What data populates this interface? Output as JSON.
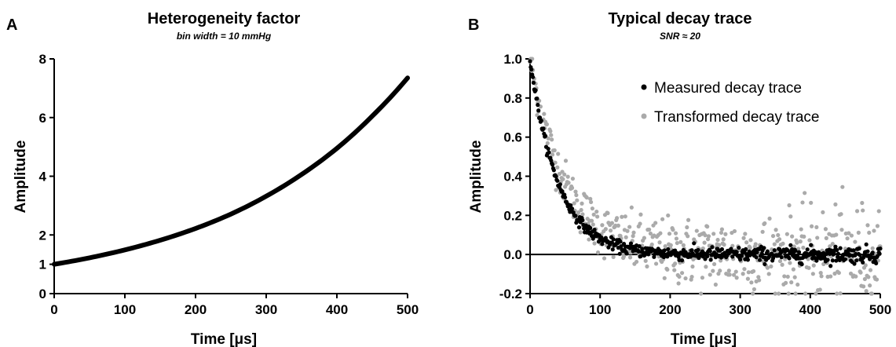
{
  "chart_data": [
    {
      "panel": "A",
      "type": "line",
      "title": "Heterogeneity factor",
      "subtitle": "bin width = 10 mmHg",
      "xlabel": "Time [μs]",
      "ylabel": "Amplitude",
      "xlim": [
        0,
        500
      ],
      "ylim": [
        0,
        8
      ],
      "xticks": [
        "0",
        "100",
        "200",
        "300",
        "400",
        "500"
      ],
      "yticks": [
        "0",
        "1",
        "2",
        "4",
        "6",
        "8"
      ],
      "series": [
        {
          "x": [
            0,
            50,
            100,
            150,
            200,
            250,
            300,
            350,
            400,
            450,
            500
          ],
          "y": [
            1.0,
            1.22,
            1.49,
            1.82,
            2.22,
            2.71,
            3.32,
            4.06,
            4.95,
            6.05,
            7.35
          ]
        }
      ],
      "colors": {
        "line": "#000000"
      }
    },
    {
      "panel": "B",
      "type": "scatter",
      "title": "Typical decay trace",
      "subtitle": "SNR ≈ 20",
      "xlabel": "Time [μs]",
      "ylabel": "Amplitude",
      "xlim": [
        0,
        500
      ],
      "ylim": [
        -0.2,
        1.0
      ],
      "xticks": [
        "0",
        "100",
        "200",
        "300",
        "400",
        "500"
      ],
      "yticks": [
        "-0.2",
        "0.0",
        "0.2",
        "0.4",
        "0.6",
        "0.8",
        "1.0"
      ],
      "legend_position": "top-right",
      "series": [
        {
          "name": "Measured decay trace",
          "color": "#000000",
          "decay_model": {
            "amplitude": 1.0,
            "tau": 40,
            "noise_sd": 0.012,
            "spacing": 1.0
          }
        },
        {
          "name": "Transformed decay trace",
          "color": "#aaaaaa",
          "decay_model": {
            "amplitude": 1.0,
            "tau": 50,
            "noise_sd": 0.05,
            "spacing": 1.0
          }
        }
      ]
    }
  ]
}
